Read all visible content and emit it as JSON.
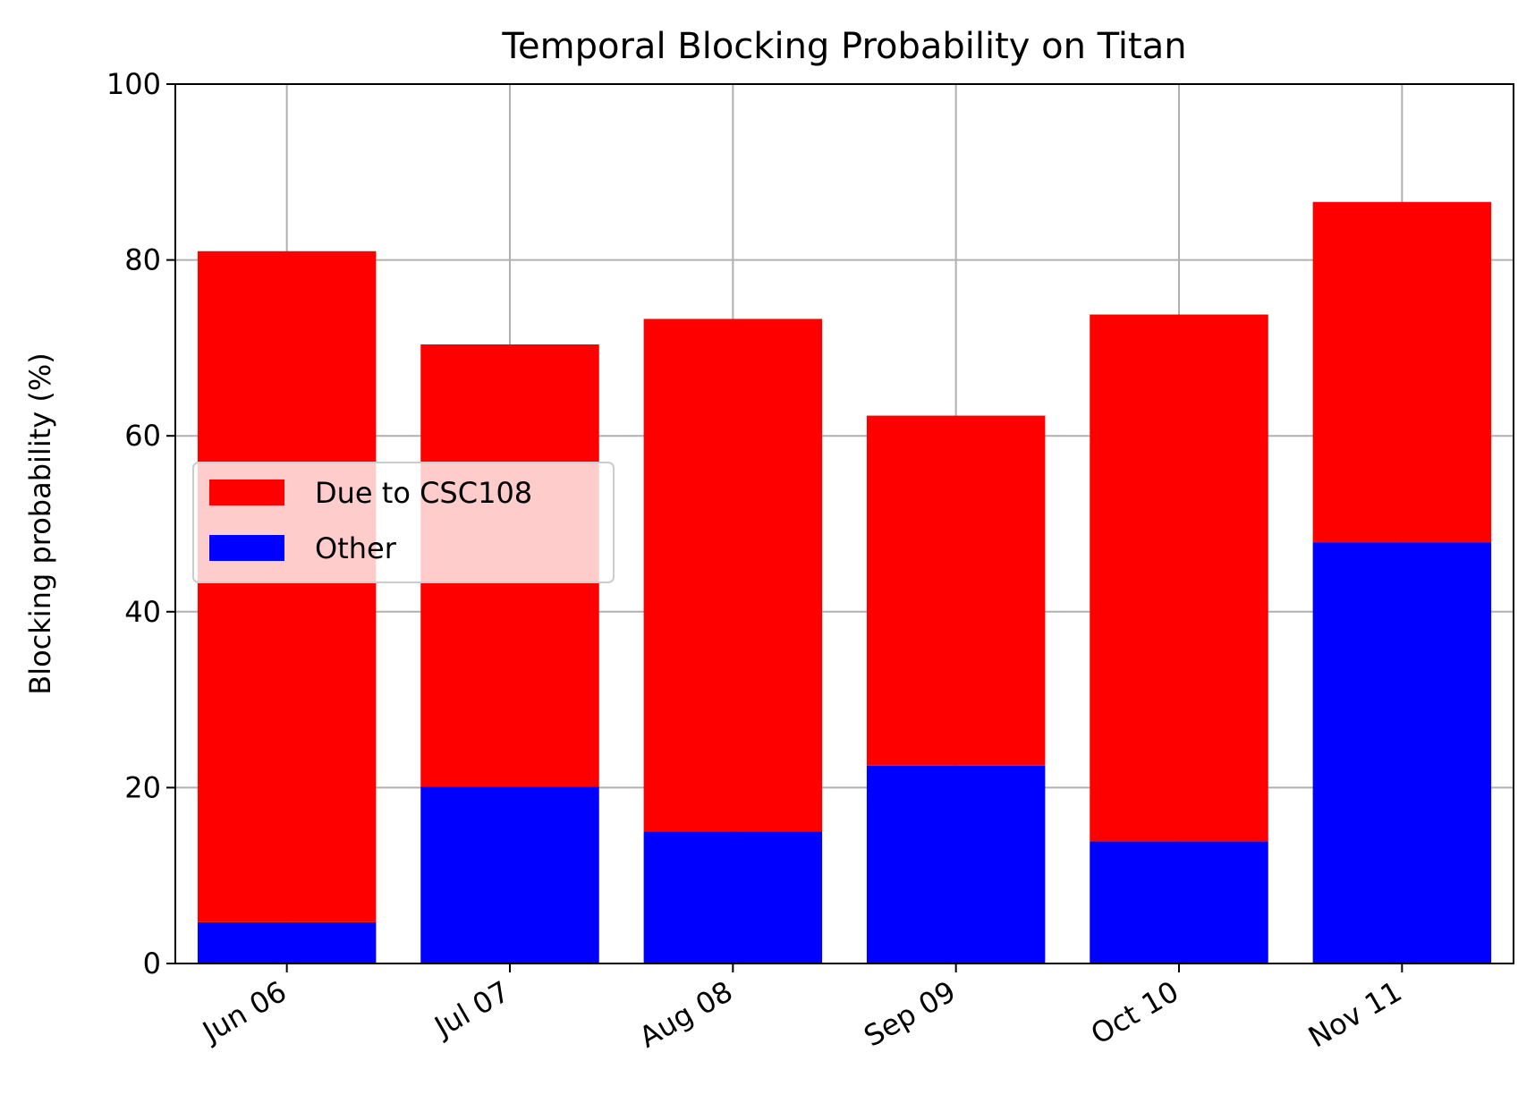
{
  "chart_data": {
    "type": "bar",
    "stacked": true,
    "title": "Temporal Blocking Probability on Titan",
    "xlabel": "",
    "ylabel": "Blocking probability (%)",
    "categories": [
      "Jun 06",
      "Jul 07",
      "Aug 08",
      "Sep 09",
      "Oct 10",
      "Nov 11"
    ],
    "series": [
      {
        "name": "Other",
        "color": "#0000ff",
        "values": [
          4.7,
          20.1,
          15.0,
          22.5,
          13.9,
          47.9
        ]
      },
      {
        "name": "Due to CSC108",
        "color": "#ff0000",
        "values": [
          76.3,
          50.3,
          58.3,
          39.8,
          59.9,
          38.7
        ]
      }
    ],
    "legend_order": [
      "Due to CSC108",
      "Other"
    ],
    "ylim": [
      0,
      100
    ],
    "yticks": [
      0,
      20,
      40,
      60,
      80,
      100
    ],
    "grid": true,
    "legend_position": "center-left"
  }
}
